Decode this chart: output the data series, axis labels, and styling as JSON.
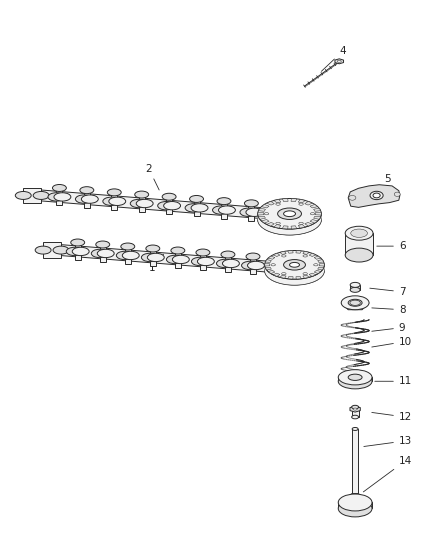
{
  "background_color": "#ffffff",
  "fig_width": 4.38,
  "fig_height": 5.33,
  "dpi": 100,
  "line_color": "#2a2a2a",
  "fill_light": "#f2f2f2",
  "fill_mid": "#e0e0e0",
  "fill_dark": "#c8c8c8",
  "label_fontsize": 7.5,
  "label_color": "#222222"
}
